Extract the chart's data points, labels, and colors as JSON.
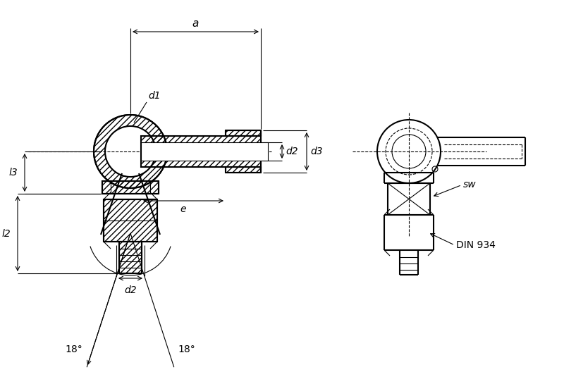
{
  "bg_color": "#ffffff",
  "line_color": "#000000",
  "dim_color": "#000000",
  "hatch_color": "#555555",
  "title": "",
  "figsize": [
    8.0,
    5.55
  ],
  "dpi": 100,
  "labels": {
    "a": "a",
    "d1": "d1",
    "d2": "d2",
    "d3": "d3",
    "l2": "l2",
    "l3": "l3",
    "e": "e",
    "sw": "sw",
    "din934": "DIN 934",
    "angle1": "18°",
    "angle2": "18°"
  }
}
